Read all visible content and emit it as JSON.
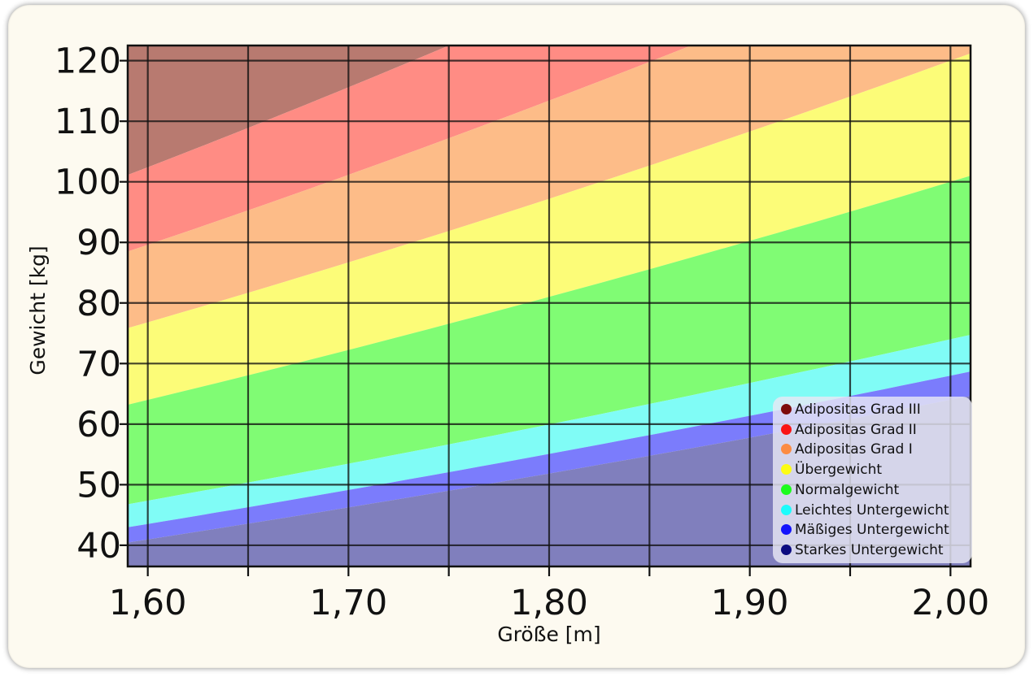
{
  "chart_data": {
    "type": "area",
    "title": "",
    "xlabel": "Größe [m]",
    "ylabel": "Gewicht [kg]",
    "xlim": [
      1.59,
      2.01
    ],
    "ylim": [
      36.5,
      122.5
    ],
    "x_ticks": [
      1.6,
      1.65,
      1.7,
      1.75,
      1.8,
      1.85,
      1.9,
      1.95,
      2.0
    ],
    "x_tick_labels": [
      "1,60",
      "1,70",
      "1,80",
      "1,90",
      "2,00"
    ],
    "x_labeled_ticks": [
      1.6,
      1.7,
      1.8,
      1.9,
      2.0
    ],
    "y_ticks": [
      40,
      50,
      60,
      70,
      80,
      90,
      100,
      110,
      120
    ],
    "y_tick_labels": [
      "40",
      "50",
      "60",
      "70",
      "80",
      "90",
      "100",
      "110",
      "120"
    ],
    "grid": true,
    "legend_position": "bottom-right",
    "bmi_boundaries": [
      16,
      17,
      18.5,
      25,
      30,
      35,
      40
    ],
    "series": [
      {
        "name": "Adipositas Grad III",
        "bmi_min": 40,
        "bmi_max": null,
        "color": "#b87a70"
      },
      {
        "name": "Adipositas Grad II",
        "bmi_min": 35,
        "bmi_max": 40,
        "color": "#ff8c84"
      },
      {
        "name": "Adipositas Grad I",
        "bmi_min": 30,
        "bmi_max": 35,
        "color": "#fdbc88"
      },
      {
        "name": "Übergewicht",
        "bmi_min": 25,
        "bmi_max": 30,
        "color": "#fcfc78"
      },
      {
        "name": "Normalgewicht",
        "bmi_min": 18.5,
        "bmi_max": 25,
        "color": "#80fc74"
      },
      {
        "name": "Leichtes Untergewicht",
        "bmi_min": 17,
        "bmi_max": 18.5,
        "color": "#80fcf6"
      },
      {
        "name": "Mäßiges Untergewicht",
        "bmi_min": 16,
        "bmi_max": 17,
        "color": "#7b7cfc"
      },
      {
        "name": "Starkes Untergewicht",
        "bmi_min": null,
        "bmi_max": 16,
        "color": "#807fbd"
      }
    ],
    "legend_dot_colors": [
      "#7d0c0c",
      "#fa1414",
      "#fc8c42",
      "#fcfc14",
      "#1cfc1c",
      "#1cfcfc",
      "#1414fc",
      "#0c0c80"
    ]
  }
}
